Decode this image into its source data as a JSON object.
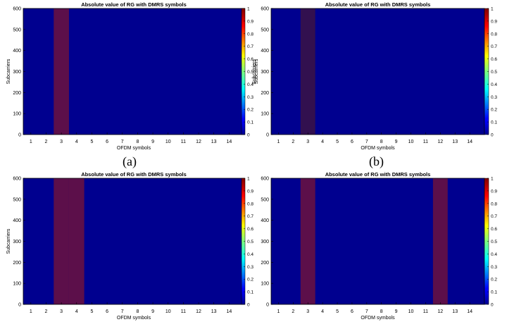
{
  "panel_labels": [
    "(a)",
    "(b)"
  ],
  "colors": {
    "background_cell": "#00008f",
    "dmrs_cell_bright": "#5c0f4a",
    "dmrs_cell_dim": "#32104f",
    "axis": "#000000"
  },
  "chart_data": [
    {
      "type": "heatmap",
      "title": "Absolute value of RG with DMRS symbols",
      "xlabel": "OFDM symbols",
      "ylabel": "Subcarriers",
      "x": [
        1,
        2,
        3,
        4,
        5,
        6,
        7,
        8,
        9,
        10,
        11,
        12,
        13,
        14
      ],
      "xticks": [
        "1",
        "2",
        "3",
        "4",
        "5",
        "6",
        "7",
        "8",
        "9",
        "10",
        "11",
        "12",
        "13",
        "14"
      ],
      "ylim": [
        0,
        600
      ],
      "yticks": [
        "0",
        "100",
        "200",
        "300",
        "400",
        "500",
        "600"
      ],
      "colorbar_ticks": [
        "0",
        "0.1",
        "0.2",
        "0.3",
        "0.4",
        "0.5",
        "0.6",
        "0.7",
        "0.8",
        "0.9",
        "1"
      ],
      "colorbar_limits": [
        0,
        1
      ],
      "colormap": "jet",
      "dmrs_symbols": [
        3
      ],
      "dmrs_value": 1,
      "other_value": 0
    },
    {
      "type": "heatmap",
      "title": "Absolute value of RG with DMRS symbols",
      "xlabel": "OFDM symbols",
      "ylabel": "Subcarriers",
      "x": [
        1,
        2,
        3,
        4,
        5,
        6,
        7,
        8,
        9,
        10,
        11,
        12,
        13,
        14
      ],
      "xticks": [
        "1",
        "2",
        "3",
        "4",
        "5",
        "6",
        "7",
        "8",
        "9",
        "10",
        "11",
        "12",
        "13",
        "14"
      ],
      "ylim": [
        0,
        600
      ],
      "yticks": [
        "0",
        "100",
        "200",
        "300",
        "400",
        "500",
        "600"
      ],
      "colorbar_ticks": [
        "0",
        "0.1",
        "0.2",
        "0.3",
        "0.4",
        "0.5",
        "0.6",
        "0.7",
        "0.8",
        "0.9",
        "1"
      ],
      "colorbar_limits": [
        0,
        1
      ],
      "colormap": "jet",
      "dmrs_symbols": [
        3
      ],
      "dmrs_value": 1,
      "dmrs_pattern": "alternating subcarriers",
      "other_value": 0
    },
    {
      "type": "heatmap",
      "title": "Absolute value of RG with DMRS symbols",
      "xlabel": "OFDM symbols",
      "ylabel": "Subcarriers",
      "x": [
        1,
        2,
        3,
        4,
        5,
        6,
        7,
        8,
        9,
        10,
        11,
        12,
        13,
        14
      ],
      "xticks": [
        "1",
        "2",
        "3",
        "4",
        "5",
        "6",
        "7",
        "8",
        "9",
        "10",
        "11",
        "12",
        "13",
        "14"
      ],
      "ylim": [
        0,
        600
      ],
      "yticks": [
        "0",
        "100",
        "200",
        "300",
        "400",
        "500",
        "600"
      ],
      "colorbar_ticks": [
        "0",
        "0.1",
        "0.2",
        "0.3",
        "0.4",
        "0.5",
        "0.6",
        "0.7",
        "0.8",
        "0.9",
        "1"
      ],
      "colorbar_limits": [
        0,
        1
      ],
      "colormap": "jet",
      "dmrs_symbols": [
        3,
        4
      ],
      "dmrs_value": 1,
      "other_value": 0
    },
    {
      "type": "heatmap",
      "title": "Absolute value of RG with DMRS symbols",
      "xlabel": "OFDM symbols",
      "ylabel": "",
      "x": [
        1,
        2,
        3,
        4,
        5,
        6,
        7,
        8,
        9,
        10,
        11,
        12,
        13,
        14
      ],
      "xticks": [
        "1",
        "2",
        "3",
        "4",
        "5",
        "6",
        "7",
        "8",
        "9",
        "10",
        "11",
        "12",
        "13",
        "14"
      ],
      "ylim": [
        0,
        600
      ],
      "yticks": [
        "0",
        "100",
        "200",
        "300",
        "400",
        "500",
        "600"
      ],
      "colorbar_ticks": [
        "0",
        "0.1",
        "0.2",
        "0.3",
        "0.4",
        "0.5",
        "0.6",
        "0.7",
        "0.8",
        "0.9",
        "1"
      ],
      "colorbar_limits": [
        0,
        1
      ],
      "colormap": "jet",
      "dmrs_symbols": [
        3,
        12
      ],
      "dmrs_value": 1,
      "other_value": 0
    }
  ]
}
